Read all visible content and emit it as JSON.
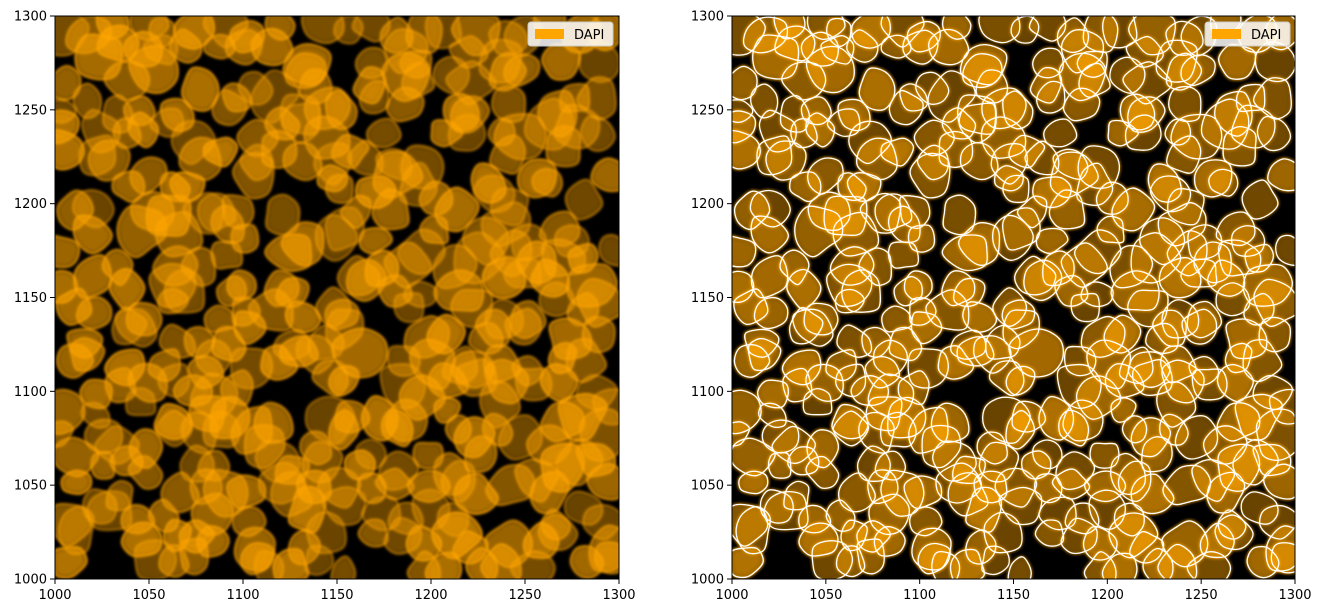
{
  "panels": [
    {
      "id": "raw",
      "legend": "DAPI",
      "segmentation_outlines": false
    },
    {
      "id": "segmented",
      "legend": "DAPI",
      "segmentation_outlines": true
    }
  ],
  "axes": {
    "x_ticks": [
      "1000",
      "1050",
      "1100",
      "1150",
      "1200",
      "1250",
      "1300"
    ],
    "y_ticks": [
      "1300",
      "1250",
      "1200",
      "1150",
      "1100",
      "1050",
      "1000"
    ],
    "xlim": [
      1000,
      1300
    ],
    "ylim": [
      1000,
      1300
    ]
  },
  "colors": {
    "signal": "#ffa500",
    "background": "#000000",
    "outline": "#ffffff"
  }
}
